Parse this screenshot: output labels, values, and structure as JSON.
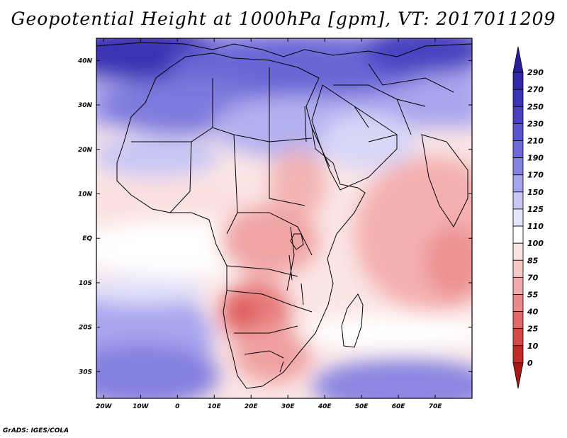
{
  "title": "Geopotential Height at 1000hPa [gpm], VT: 2017011209",
  "credit": "GrADS: IGES/COLA",
  "map": {
    "lon_range": [
      -22,
      80
    ],
    "lat_range": [
      -36,
      45
    ],
    "x_ticks": [
      {
        "lon": -20,
        "label": "20W"
      },
      {
        "lon": -10,
        "label": "10W"
      },
      {
        "lon": 0,
        "label": "0"
      },
      {
        "lon": 10,
        "label": "10E"
      },
      {
        "lon": 20,
        "label": "20E"
      },
      {
        "lon": 30,
        "label": "30E"
      },
      {
        "lon": 40,
        "label": "40E"
      },
      {
        "lon": 50,
        "label": "50E"
      },
      {
        "lon": 60,
        "label": "60E"
      },
      {
        "lon": 70,
        "label": "70E"
      }
    ],
    "y_ticks": [
      {
        "lat": 40,
        "label": "40N"
      },
      {
        "lat": 30,
        "label": "30N"
      },
      {
        "lat": 20,
        "label": "20N"
      },
      {
        "lat": 10,
        "label": "10N"
      },
      {
        "lat": 0,
        "label": "EQ"
      },
      {
        "lat": -10,
        "label": "10S"
      },
      {
        "lat": -20,
        "label": "20S"
      },
      {
        "lat": -30,
        "label": "30S"
      }
    ]
  },
  "colorbar": {
    "labels": [
      "290",
      "270",
      "250",
      "230",
      "210",
      "190",
      "170",
      "150",
      "125",
      "110",
      "100",
      "85",
      "70",
      "55",
      "40",
      "25",
      "10",
      "0"
    ],
    "colors": [
      "#2a1f9a",
      "#3427a8",
      "#3d33b5",
      "#4a42c0",
      "#5a55cc",
      "#6f6ad8",
      "#8783e2",
      "#a6a3ec",
      "#c8c6f4",
      "#e6e6fa",
      "#ffffff",
      "#fbe3e3",
      "#f6c8c8",
      "#f0aaaa",
      "#ea8a8a",
      "#e26868",
      "#d84848",
      "#c42a2a",
      "#a91717"
    ]
  }
}
